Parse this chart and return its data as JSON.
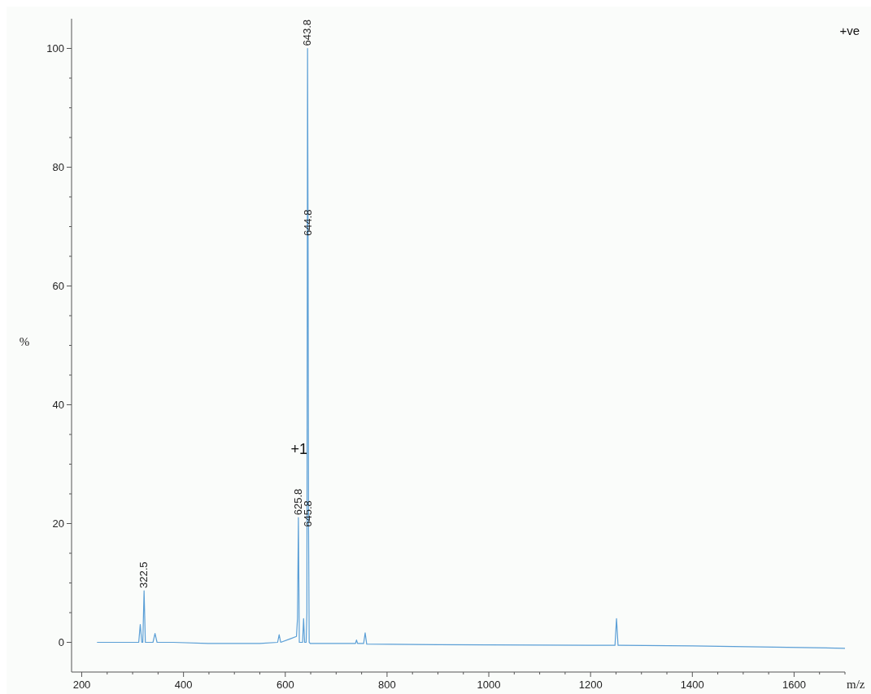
{
  "chart_data": {
    "type": "line",
    "xlabel": "m/z",
    "ylabel": "%",
    "xlim": [
      180,
      1700
    ],
    "ylim": [
      -5,
      105
    ],
    "xticks": [
      200,
      {
        "value": 250,
        "label": null
      },
      {
        "value": 300,
        "label": null
      },
      {
        "value": 350,
        "label": null
      },
      400,
      {
        "value": 450,
        "label": null
      },
      {
        "value": 500,
        "label": null
      },
      {
        "value": 550,
        "label": null
      },
      600,
      {
        "value": 650,
        "label": null
      },
      {
        "value": 700,
        "label": null
      },
      {
        "value": 750,
        "label": null
      },
      800,
      {
        "value": 850,
        "label": null
      },
      {
        "value": 900,
        "label": null
      },
      {
        "value": 950,
        "label": null
      },
      1000,
      {
        "value": 1050,
        "label": null
      },
      {
        "value": 1100,
        "label": null
      },
      {
        "value": 1150,
        "label": null
      },
      1200,
      {
        "value": 1250,
        "label": null
      },
      {
        "value": 1300,
        "label": null
      },
      {
        "value": 1350,
        "label": null
      },
      1400,
      {
        "value": 1450,
        "label": null
      },
      {
        "value": 1500,
        "label": null
      },
      {
        "value": 1550,
        "label": null
      },
      1600,
      {
        "value": 1650,
        "label": null
      },
      {
        "value": 1700,
        "label": null
      }
    ],
    "yticks": [
      0,
      {
        "value": 5,
        "label": null
      },
      {
        "value": 10,
        "label": null
      },
      {
        "value": 15,
        "label": null
      },
      20,
      {
        "value": 25,
        "label": null
      },
      {
        "value": 30,
        "label": null
      },
      {
        "value": 35,
        "label": null
      },
      40,
      {
        "value": 45,
        "label": null
      },
      {
        "value": 50,
        "label": null
      },
      {
        "value": 55,
        "label": null
      },
      60,
      {
        "value": 65,
        "label": null
      },
      {
        "value": 70,
        "label": null
      },
      {
        "value": 75,
        "label": null
      },
      80,
      {
        "value": 85,
        "label": null
      },
      {
        "value": 90,
        "label": null
      },
      {
        "value": 95,
        "label": null
      },
      100
    ],
    "grid": false,
    "marker": "none",
    "line_style": "solid",
    "series": [
      {
        "color": "#5b9fd6",
        "x": [
          230,
          300,
          312,
          315,
          318,
          320,
          322.5,
          325,
          340,
          344,
          348,
          380,
          450,
          550,
          585,
          588,
          591,
          610,
          622,
          624,
          625.8,
          627.6,
          630,
          634,
          636,
          638,
          641,
          642.5,
          643.8,
          644.8,
          645.8,
          647,
          649,
          700,
          738,
          740,
          742,
          754,
          757,
          760,
          900,
          1200,
          1248,
          1251,
          1254,
          1400,
          1700
        ],
        "values": [
          0,
          0,
          0,
          3,
          0,
          0,
          8.7,
          0,
          0,
          1.5,
          0,
          0,
          -0.2,
          -0.2,
          0,
          1.3,
          0,
          0.6,
          1,
          4,
          21,
          0,
          0,
          0,
          4,
          0,
          0,
          5,
          100,
          68,
          19,
          0,
          -0.2,
          -0.2,
          -0.2,
          0.4,
          -0.2,
          -0.2,
          1.6,
          -0.3,
          -0.4,
          -0.5,
          -0.5,
          4,
          -0.5,
          -0.6,
          -1
        ]
      }
    ],
    "annotations": [
      {
        "text": "322.5",
        "x": 322.5,
        "y": 8.7
      },
      {
        "text": "625.8",
        "x": 625.8,
        "y": 21
      },
      {
        "text": "645.8",
        "x": 645.8,
        "y": 19
      },
      {
        "text": "644.8",
        "x": 644.8,
        "y": 68
      },
      {
        "text": "643.8",
        "x": 643.8,
        "y": 100
      },
      "+1",
      "+ve"
    ]
  }
}
